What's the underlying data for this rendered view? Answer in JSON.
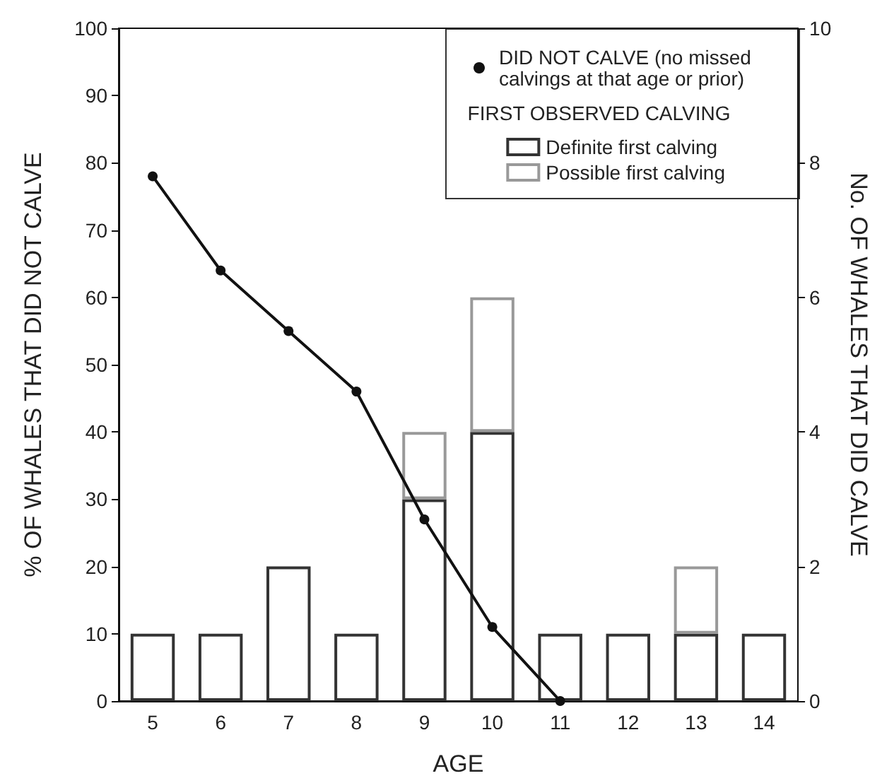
{
  "chart_data": {
    "type": "bar",
    "xlabel": "AGE",
    "ylabel": "% OF WHALES THAT DID NOT CALVE",
    "y2label": "No. OF WHALES THAT DID CALVE",
    "legend_title": "FIRST OBSERVED CALVING",
    "categories": [
      "5",
      "6",
      "7",
      "8",
      "9",
      "10",
      "11",
      "12",
      "13",
      "14"
    ],
    "series": [
      {
        "name": "DID NOT CALVE (no missed calvings at that age or prior)",
        "type": "line",
        "color": "#111111",
        "values": [
          78,
          64,
          55,
          46,
          27,
          11,
          0,
          null,
          null,
          null
        ]
      },
      {
        "name": "Definite first calving",
        "axis": "y2",
        "color": "#333333",
        "values": [
          1,
          1,
          2,
          1,
          3,
          4,
          1,
          1,
          1,
          1
        ]
      },
      {
        "name": "Possible first calving",
        "axis": "y2",
        "color": "#999999",
        "values": [
          null,
          null,
          null,
          null,
          1,
          2,
          null,
          null,
          1,
          null
        ]
      }
    ],
    "stacked": true,
    "marker": "circle",
    "line_style": "solid",
    "grid": false,
    "legend": "top right",
    "ylim": [
      0,
      100
    ],
    "yticks": [
      0,
      10,
      20,
      30,
      40,
      50,
      60,
      70,
      80,
      90,
      100
    ],
    "y2lim": [
      0,
      10
    ],
    "y2ticks": [
      0,
      2,
      4,
      6,
      8,
      10
    ]
  }
}
